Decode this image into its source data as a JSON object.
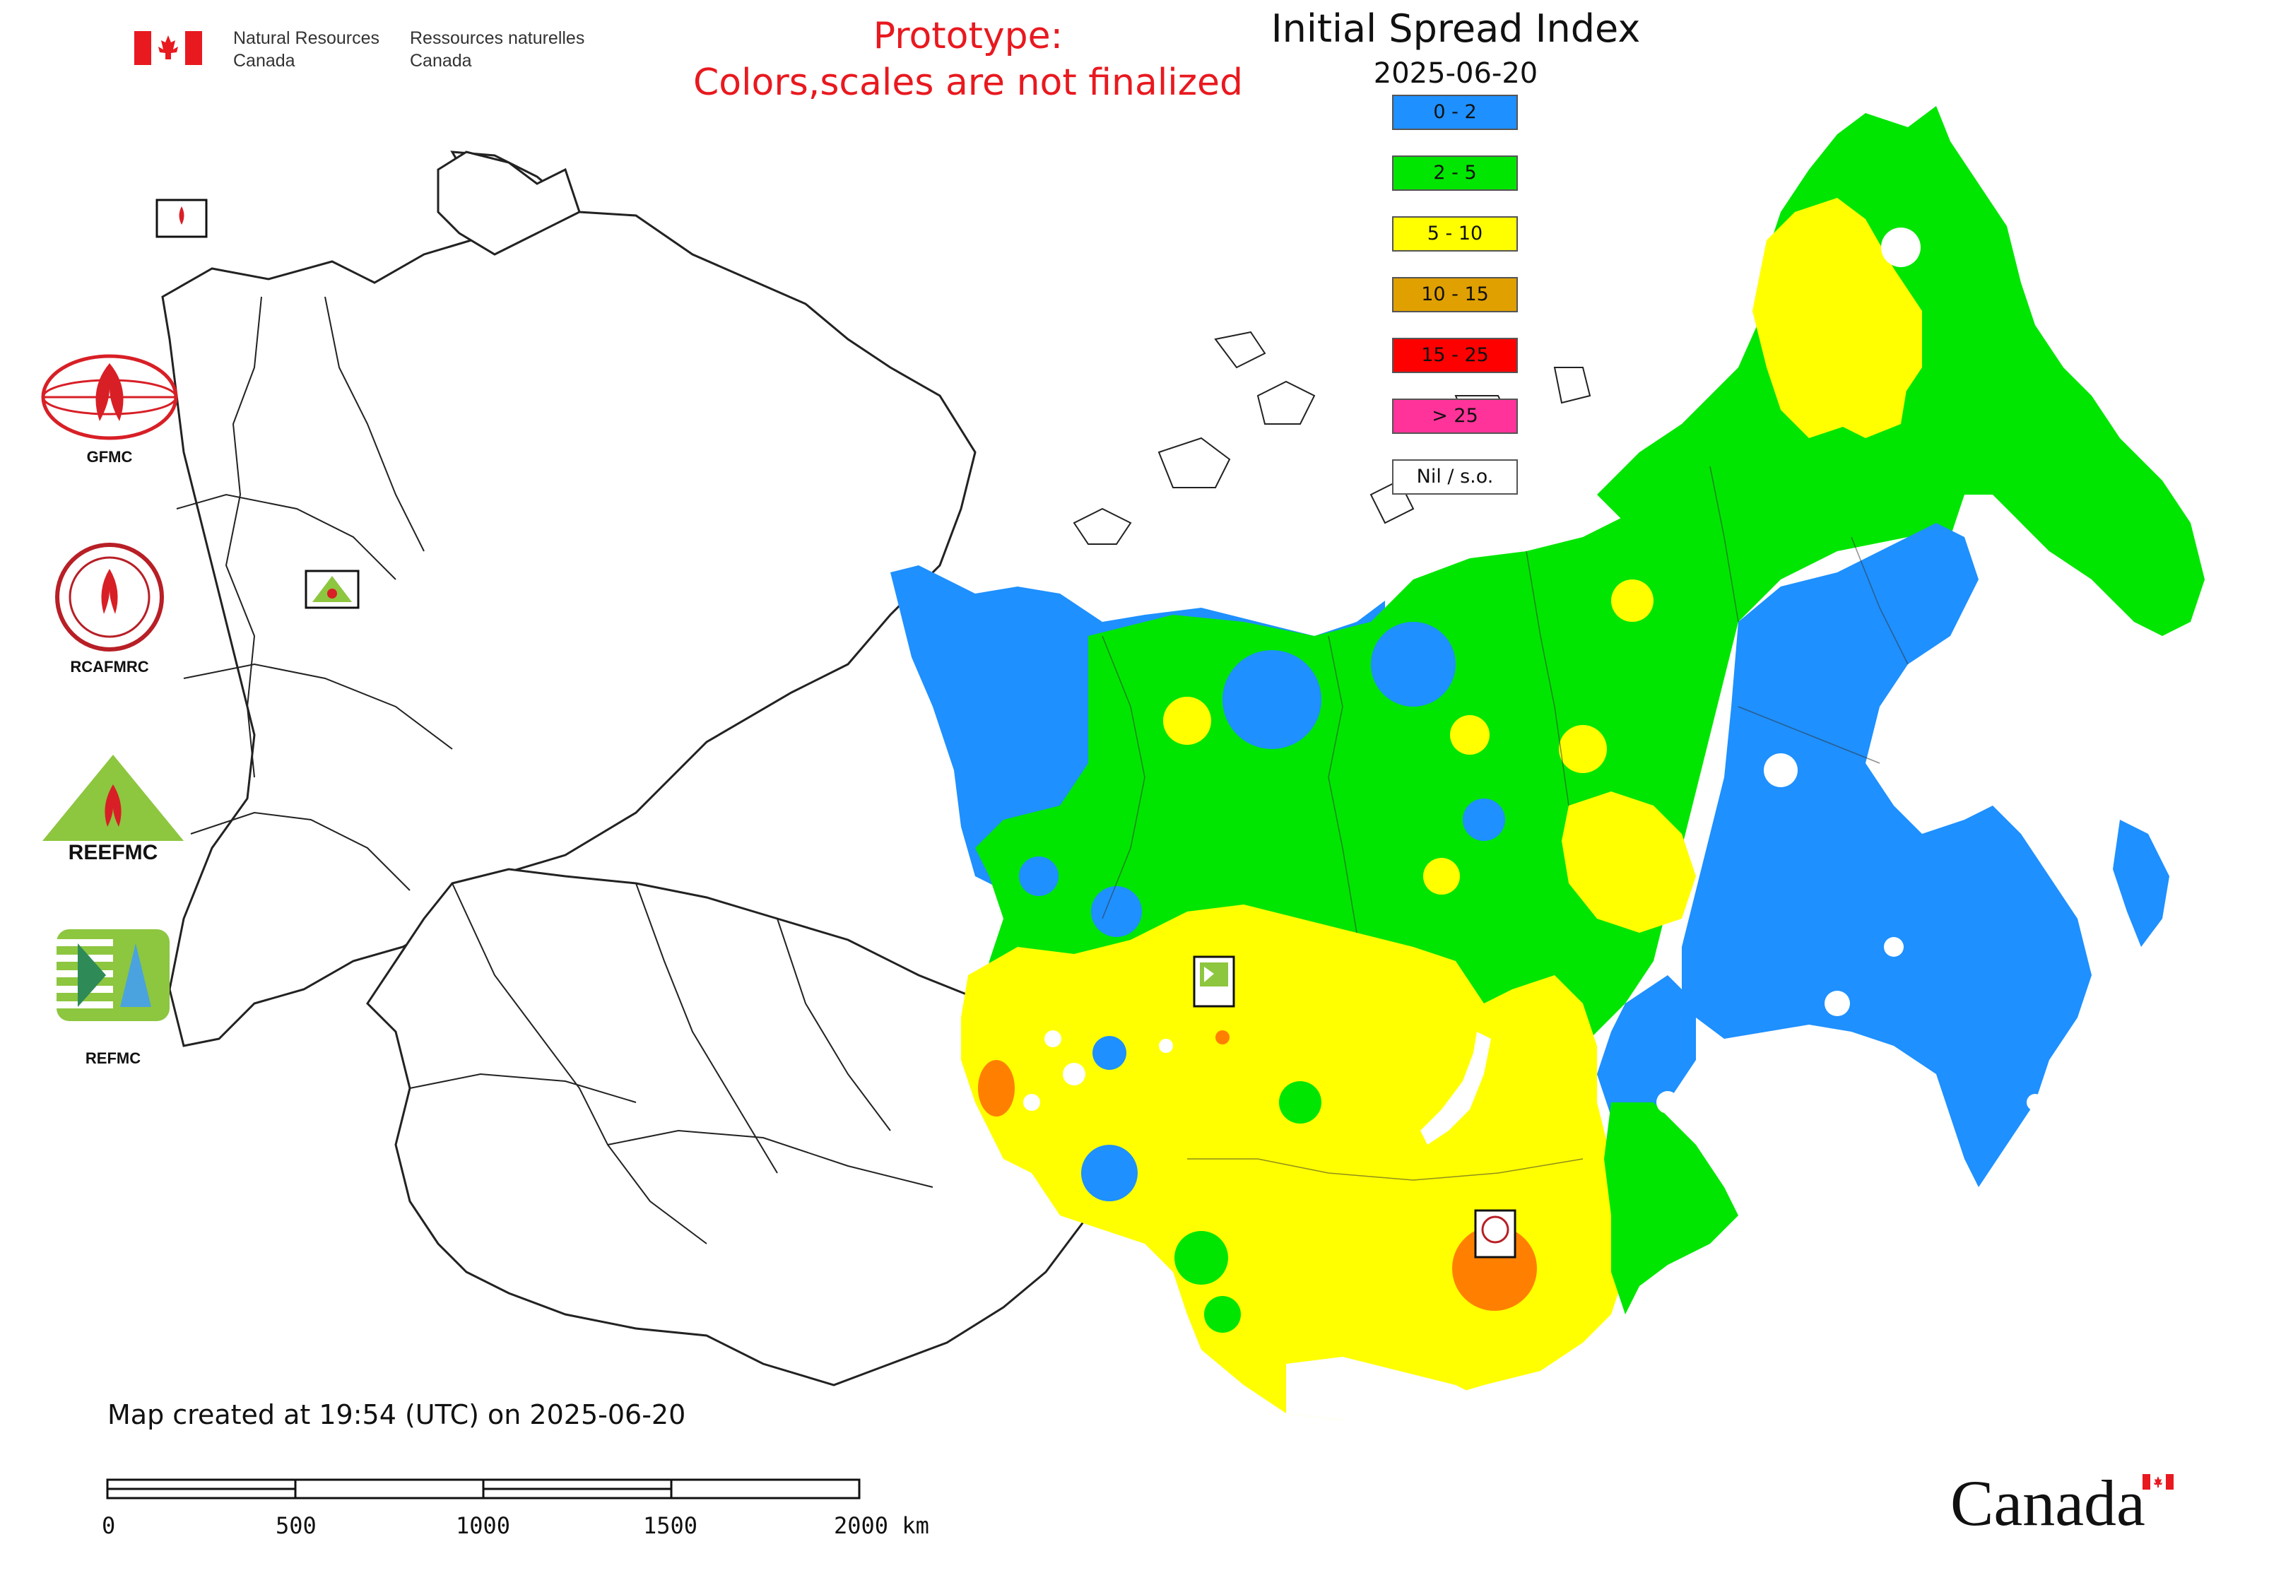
{
  "header": {
    "nrcan_en": [
      "Natural Resources",
      "Canada"
    ],
    "nrcan_fr": [
      "Ressources naturelles",
      "Canada"
    ]
  },
  "notice": {
    "line1": "Prototype:",
    "line2": "Colors,scales are not finalized"
  },
  "map": {
    "title": "Initial Spread Index",
    "date": "2025-06-20"
  },
  "legend": [
    {
      "label": "0 - 2",
      "color": "#1e90ff"
    },
    {
      "label": "2 - 5",
      "color": "#00e600"
    },
    {
      "label": "5 - 10",
      "color": "#ffff00"
    },
    {
      "label": "10 - 15",
      "color": "#e0a000"
    },
    {
      "label": "15 - 25",
      "color": "#ff0000"
    },
    {
      "label": "> 25",
      "color": "#ff3399"
    },
    {
      "label": "Nil / s.o.",
      "color": "#ffffff"
    }
  ],
  "logos": [
    {
      "label": "GFMC",
      "icon": "gfmc-logo-icon"
    },
    {
      "label": "RCAFMRC",
      "icon": "rcafmrc-logo-icon"
    },
    {
      "label": "",
      "icon": "reefmc-logo-icon",
      "wordmark": "REEFMC"
    },
    {
      "label": "REFMC",
      "icon": "refmc-logo-icon"
    }
  ],
  "footer": {
    "created": "Map created at 19:54 (UTC) on 2025-06-20",
    "scale_ticks": [
      "0",
      "500",
      "1000",
      "1500",
      "2000 km"
    ],
    "canada_wordmark": "Canada"
  },
  "colors": {
    "notice": "#e8191f",
    "outline": "#222222"
  }
}
